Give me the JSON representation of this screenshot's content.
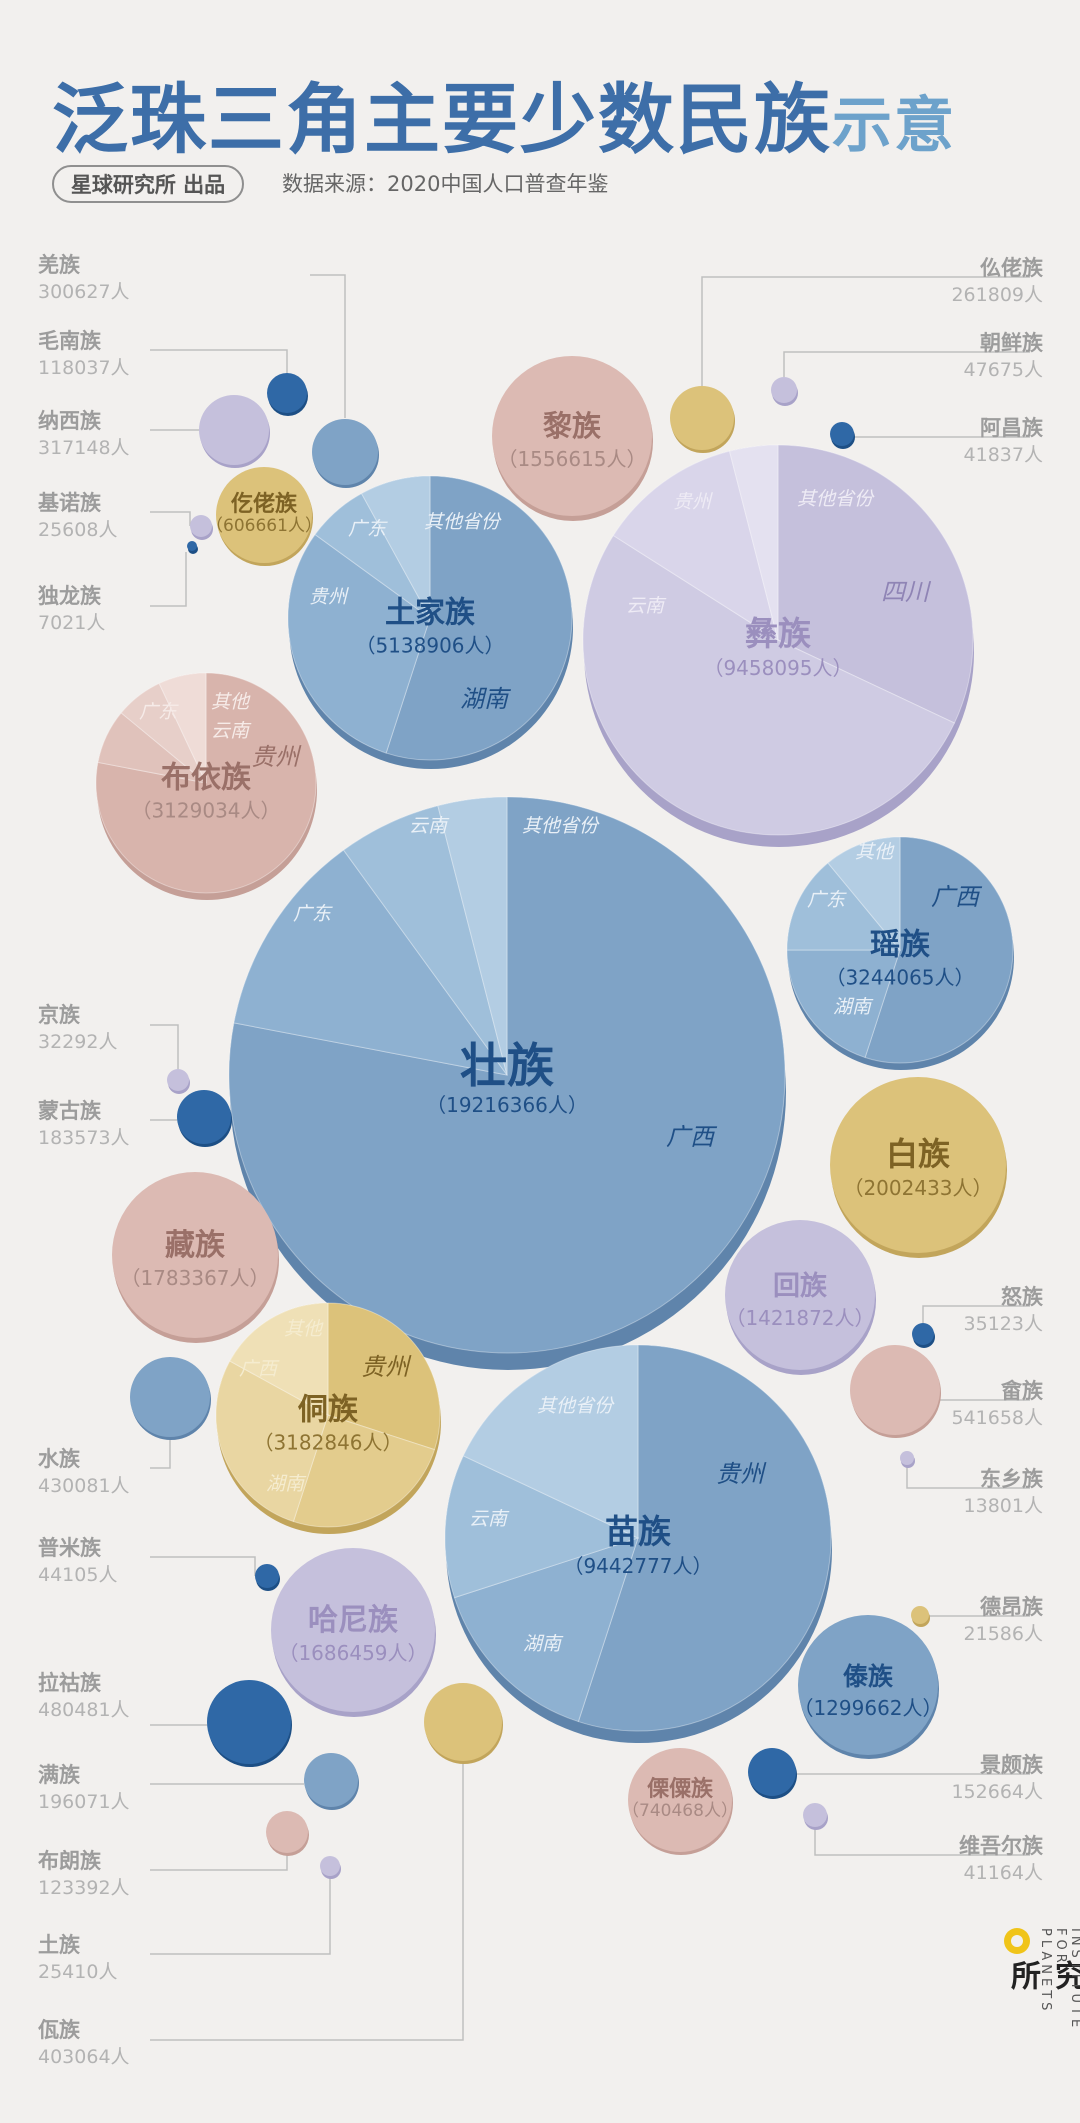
{
  "header": {
    "title_main": "泛珠三角主要少数民族",
    "title_tail": "示意",
    "byline": "星球研究所 出品",
    "source": "数据来源：2020中国人口普查年鉴"
  },
  "logo": {
    "name_cn": "星球研究所",
    "name_en": "INSTITUTE FOR PLANETS"
  },
  "colors": {
    "blue": "#7fa3c6",
    "deep_blue": "#2a67a8",
    "purple": "#c5c0dc",
    "pink": "#dcbab3",
    "gold": "#d9be72",
    "label_text": "#a3a3a3"
  },
  "chart_data": {
    "type": "packed-bubble",
    "major": [
      {
        "name": "壮族",
        "population": 19216366,
        "pop_label": "（19216366人）",
        "color": "blue",
        "labels": [
          "广西",
          "广东",
          "云南",
          "其他省份"
        ]
      },
      {
        "name": "彝族",
        "population": 9458095,
        "pop_label": "（9458095人）",
        "color": "purple",
        "labels": [
          "四川",
          "云南",
          "贵州",
          "其他省份"
        ]
      },
      {
        "name": "苗族",
        "population": 9442777,
        "pop_label": "（9442777人）",
        "color": "blue",
        "labels": [
          "贵州",
          "湖南",
          "云南",
          "其他省份"
        ]
      },
      {
        "name": "土家族",
        "population": 5138906,
        "pop_label": "（5138906人）",
        "color": "blue",
        "labels": [
          "湖南",
          "贵州",
          "广东",
          "其他省份"
        ]
      },
      {
        "name": "瑶族",
        "population": 3244065,
        "pop_label": "（3244065人）",
        "color": "blue",
        "labels": [
          "广西",
          "湖南",
          "广东",
          "其他"
        ]
      },
      {
        "name": "侗族",
        "population": 3182846,
        "pop_label": "（3182846人）",
        "color": "gold",
        "labels": [
          "贵州",
          "湖南",
          "广西",
          "其他"
        ]
      },
      {
        "name": "布依族",
        "population": 3129034,
        "pop_label": "（3129034人）",
        "color": "pink",
        "labels": [
          "贵州",
          "云南",
          "广东",
          "其他"
        ]
      }
    ],
    "medium": [
      {
        "name": "白族",
        "population": 2002433,
        "pop_label": "（2002433人）",
        "color": "gold"
      },
      {
        "name": "藏族",
        "population": 1783367,
        "pop_label": "（1783367人）",
        "color": "pink"
      },
      {
        "name": "哈尼族",
        "population": 1686459,
        "pop_label": "（1686459人）",
        "color": "purple"
      },
      {
        "name": "黎族",
        "population": 1556615,
        "pop_label": "（1556615人）",
        "color": "pink"
      },
      {
        "name": "回族",
        "population": 1421872,
        "pop_label": "（1421872人）",
        "color": "purple"
      },
      {
        "name": "傣族",
        "population": 1299662,
        "pop_label": "（1299662人）",
        "color": "blue"
      },
      {
        "name": "傈僳族",
        "population": 740468,
        "pop_label": "（740468人）",
        "color": "pink"
      },
      {
        "name": "仡佬族",
        "population": 606661,
        "pop_label": "（606661人）",
        "color": "gold"
      }
    ],
    "small": [
      {
        "name": "羌族",
        "population": 300627,
        "pop_label": "300627人",
        "color": "blue"
      },
      {
        "name": "毛南族",
        "population": 118037,
        "pop_label": "118037人",
        "color": "deep_blue"
      },
      {
        "name": "纳西族",
        "population": 317148,
        "pop_label": "317148人",
        "color": "purple"
      },
      {
        "name": "基诺族",
        "population": 25608,
        "pop_label": "25608人",
        "color": "purple"
      },
      {
        "name": "独龙族",
        "population": 7021,
        "pop_label": "7021人",
        "color": "deep_blue"
      },
      {
        "name": "仫佬族",
        "population": 261809,
        "pop_label": "261809人",
        "color": "gold"
      },
      {
        "name": "朝鲜族",
        "population": 47675,
        "pop_label": "47675人",
        "color": "purple"
      },
      {
        "name": "阿昌族",
        "population": 41837,
        "pop_label": "41837人",
        "color": "deep_blue"
      },
      {
        "name": "京族",
        "population": 32292,
        "pop_label": "32292人",
        "color": "purple"
      },
      {
        "name": "蒙古族",
        "population": 183573,
        "pop_label": "183573人",
        "color": "deep_blue"
      },
      {
        "name": "水族",
        "population": 430081,
        "pop_label": "430081人",
        "color": "blue"
      },
      {
        "name": "普米族",
        "population": 44105,
        "pop_label": "44105人",
        "color": "deep_blue"
      },
      {
        "name": "拉祜族",
        "population": 480481,
        "pop_label": "480481人",
        "color": "deep_blue"
      },
      {
        "name": "满族",
        "population": 196071,
        "pop_label": "196071人",
        "color": "blue"
      },
      {
        "name": "布朗族",
        "population": 123392,
        "pop_label": "123392人",
        "color": "pink"
      },
      {
        "name": "土族",
        "population": 25410,
        "pop_label": "25410人",
        "color": "purple"
      },
      {
        "name": "佤族",
        "population": 403064,
        "pop_label": "403064人",
        "color": "gold"
      },
      {
        "name": "怒族",
        "population": 35123,
        "pop_label": "35123人",
        "color": "deep_blue"
      },
      {
        "name": "畲族",
        "population": 541658,
        "pop_label": "541658人",
        "color": "pink"
      },
      {
        "name": "东乡族",
        "population": 13801,
        "pop_label": "13801人",
        "color": "purple"
      },
      {
        "name": "德昂族",
        "population": 21586,
        "pop_label": "21586人",
        "color": "gold"
      },
      {
        "name": "景颇族",
        "population": 152664,
        "pop_label": "152664人",
        "color": "deep_blue"
      },
      {
        "name": "维吾尔族",
        "population": 41164,
        "pop_label": "41164人",
        "color": "purple"
      }
    ]
  }
}
